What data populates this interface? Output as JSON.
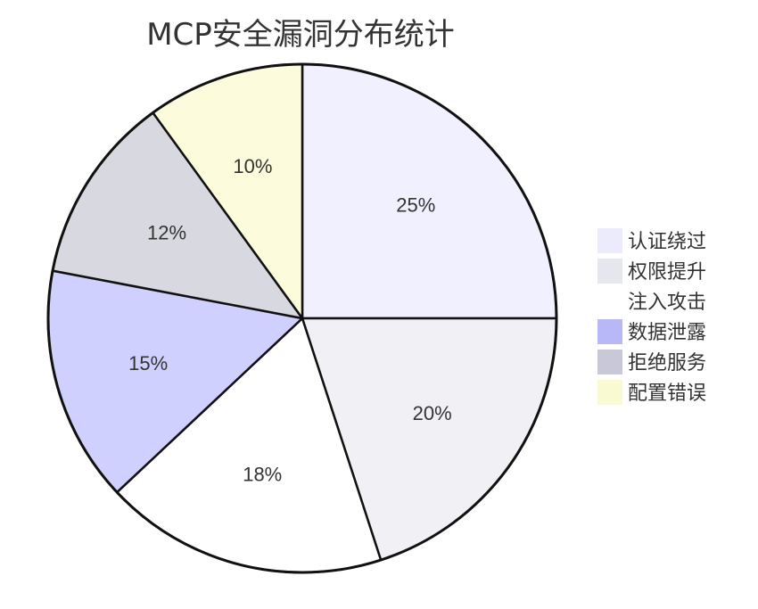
{
  "chart_data": {
    "type": "pie",
    "title": "MCP安全漏洞分布统计",
    "categories": [
      "认证绕过",
      "权限提升",
      "注入攻击",
      "数据泄露",
      "拒绝服务",
      "配置错误"
    ],
    "values": [
      25,
      20,
      18,
      15,
      12,
      10
    ],
    "value_labels": [
      "25%",
      "20%",
      "18%",
      "15%",
      "12%",
      "10%"
    ],
    "colors": [
      "#f0f0ff",
      "#f0f0f5",
      "#ffffff",
      "#d0d0ff",
      "#d8d8e0",
      "#fcfcdc"
    ],
    "legend_colors": [
      "#ebebfb",
      "#e6e6ee",
      "#ffffff",
      "#b8b8f8",
      "#c8c8d8",
      "#f9f9d2"
    ],
    "legend_position": "right",
    "start_angle": "12 o'clock",
    "direction": "clockwise"
  }
}
